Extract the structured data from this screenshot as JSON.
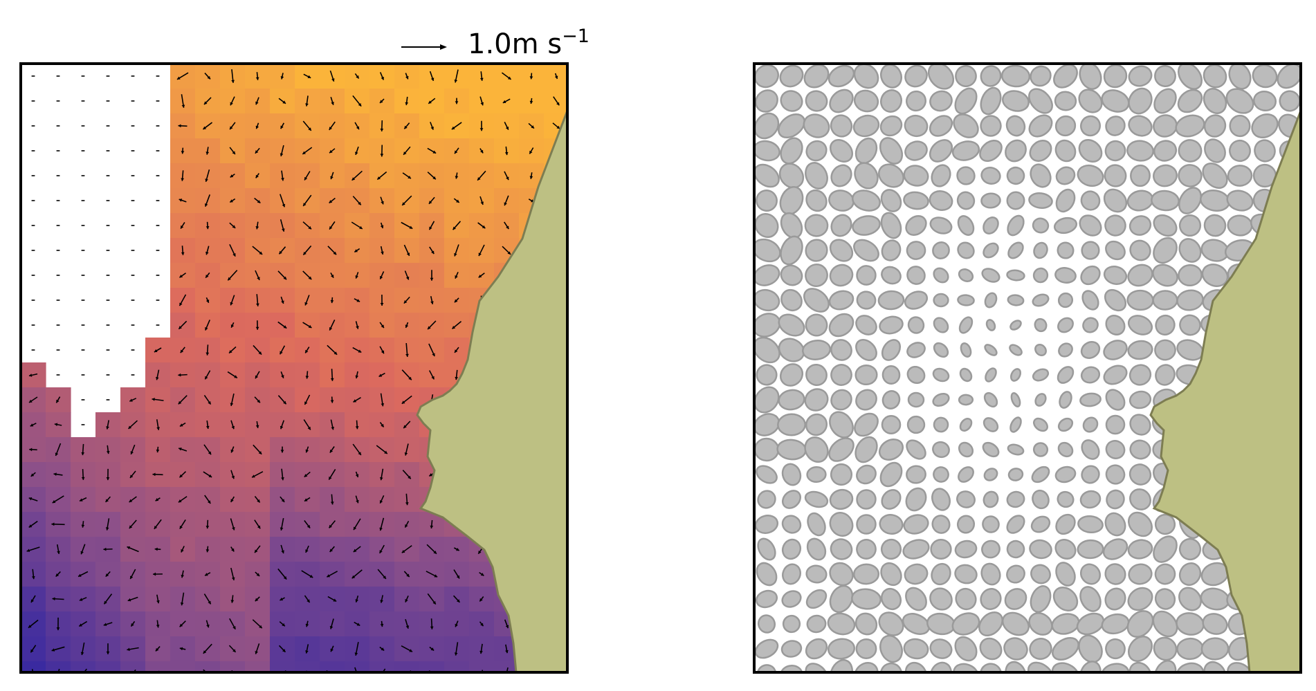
{
  "chart_data": [
    {
      "type": "heatmap",
      "overlay": "quiver",
      "title": "",
      "xlabel": "",
      "ylabel": "",
      "grid": false,
      "colormap": [
        "#3a2aa0",
        "#8a4f8a",
        "#dc6a5e",
        "#fbb43a"
      ],
      "land_color": "#bdc083",
      "land_edge_color": "#7d7d52",
      "quiver_key": {
        "magnitude": 1.0,
        "value_label": "1.0",
        "unit_label": "m s",
        "unit_exponent": "−1"
      }
    },
    {
      "type": "ellipse-field",
      "title": "",
      "xlabel": "",
      "ylabel": "",
      "grid": false,
      "ellipse_fill": "#bbbbbb",
      "ellipse_edge": "#9a9a9a",
      "land_color": "#bdc083",
      "land_edge_color": "#7d7d52"
    }
  ]
}
